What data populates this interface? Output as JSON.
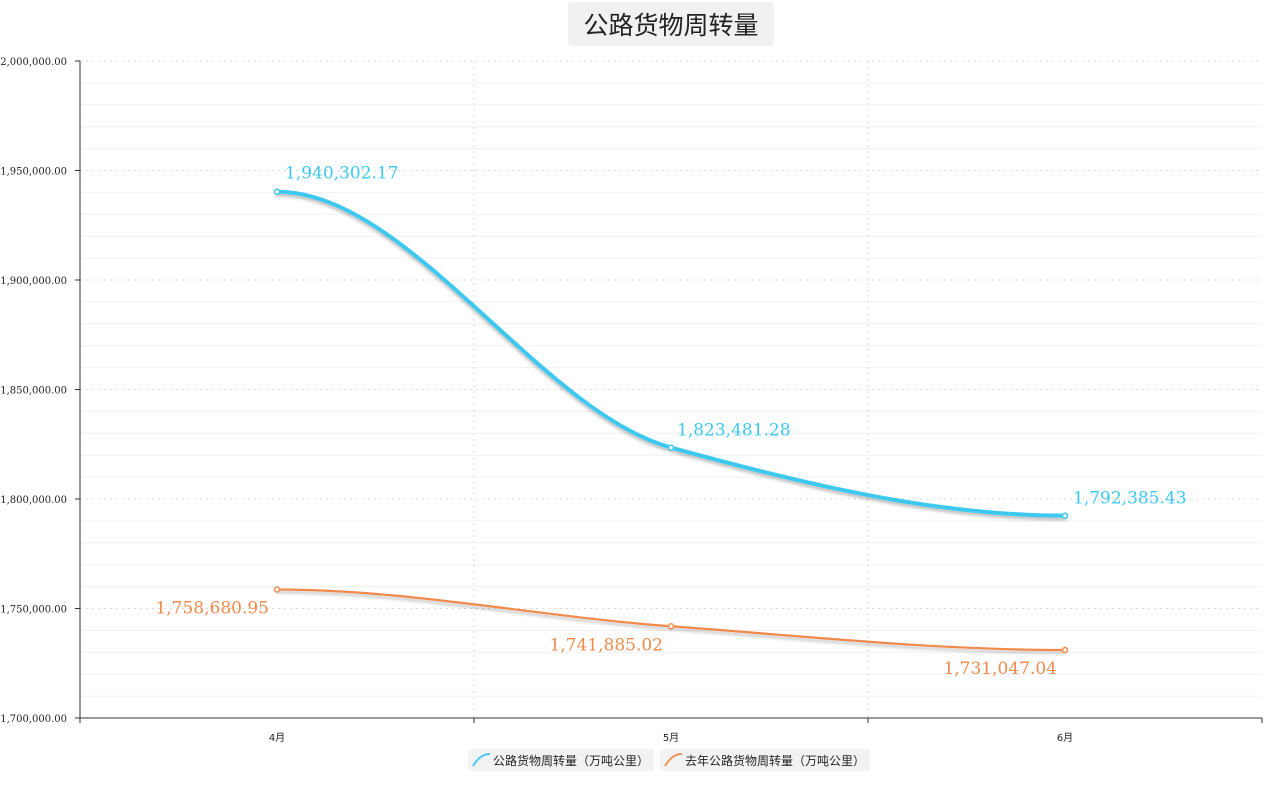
{
  "chart_data": {
    "type": "line",
    "title": "公路货物周转量",
    "categories": [
      "4月",
      "5月",
      "6月"
    ],
    "series": [
      {
        "name": "公路货物周转量（万吨公里）",
        "values": [
          1940302.17,
          1823481.28,
          1792385.43
        ],
        "labels": [
          "1,940,302.17",
          "1,823,481.28",
          "1,792,385.43"
        ],
        "color": "#3cc8f0"
      },
      {
        "name": "去年公路货物周转量（万吨公里）",
        "values": [
          1758680.95,
          1741885.02,
          1731047.04
        ],
        "labels": [
          "1,758,680.95",
          "1,741,885.02",
          "1,731,047.04"
        ],
        "color": "#f08a4b"
      }
    ],
    "ylim": [
      1700000,
      2000000
    ],
    "yticks": [
      {
        "value": 1700000,
        "label": "1,700,000.00"
      },
      {
        "value": 1750000,
        "label": "1,750,000.00"
      },
      {
        "value": 1800000,
        "label": "1,800,000.00"
      },
      {
        "value": 1850000,
        "label": "1,850,000.00"
      },
      {
        "value": 1900000,
        "label": "1,900,000.00"
      },
      {
        "value": 1950000,
        "label": "1,950,000.00"
      },
      {
        "value": 2000000,
        "label": "2,000,000.00"
      }
    ],
    "grid": true,
    "legend_position": "bottom-center",
    "xlabel": "",
    "ylabel": ""
  }
}
